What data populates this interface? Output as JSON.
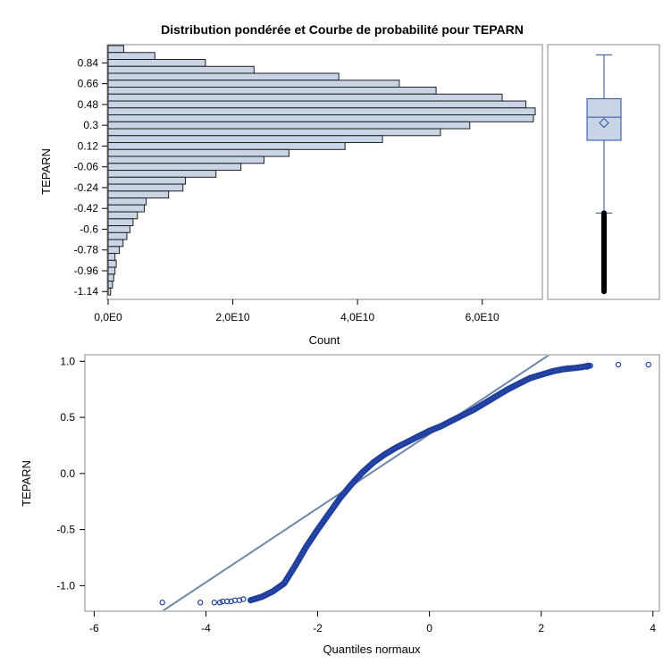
{
  "title": "Distribution pondérée et Courbe de probabilité pour TEPARN",
  "colors": {
    "bar_fill": "#c9d5e6",
    "bar_stroke": "#1f1f1f",
    "box_fill": "#c9d5e6",
    "box_stroke": "#2b4d9e",
    "qq_marker": "#1f3e9e",
    "ref_line": "#6f86a8",
    "frame": "#888888"
  },
  "chart_data": [
    {
      "id": "histogram",
      "type": "bar",
      "orientation": "horizontal",
      "ylabel": "TEPARN",
      "xlabel": "Count",
      "yticks": [
        "0.84",
        "0.66",
        "0.48",
        "0.3",
        "0.12",
        "-0.06",
        "-0.24",
        "-0.42",
        "-0.6",
        "-0.78",
        "-0.96",
        "-1.14"
      ],
      "ytick_values": [
        0.84,
        0.66,
        0.48,
        0.3,
        0.12,
        -0.06,
        -0.24,
        -0.42,
        -0.6,
        -0.78,
        -0.96,
        -1.14
      ],
      "xticks": [
        "0,0E0",
        "2,0E10",
        "4,0E10",
        "6,0E10"
      ],
      "xtick_values": [
        0,
        20000000000,
        40000000000,
        60000000000
      ],
      "xlim": [
        0,
        69500000000
      ],
      "ylim": [
        -1.2,
        0.99
      ],
      "bin_width": 0.06,
      "bin_centers": [
        0.96,
        0.9,
        0.84,
        0.78,
        0.72,
        0.66,
        0.6,
        0.54,
        0.48,
        0.42,
        0.36,
        0.3,
        0.24,
        0.18,
        0.12,
        0.06,
        0.0,
        -0.06,
        -0.12,
        -0.18,
        -0.24,
        -0.3,
        -0.36,
        -0.42,
        -0.48,
        -0.54,
        -0.6,
        -0.66,
        -0.72,
        -0.78,
        -0.84,
        -0.9,
        -0.96,
        -1.02,
        -1.08,
        -1.14
      ],
      "values": [
        2500000000,
        7500000000,
        15600000000,
        23400000000,
        37000000000,
        46700000000,
        52600000000,
        63200000000,
        67000000000,
        68500000000,
        68200000000,
        58000000000,
        53300000000,
        44000000000,
        38000000000,
        29000000000,
        25000000000,
        21300000000,
        17300000000,
        12400000000,
        12000000000,
        9700000000,
        6100000000,
        5800000000,
        4700000000,
        4000000000,
        3500000000,
        3000000000,
        2400000000,
        1800000000,
        1100000000,
        1300000000,
        1100000000,
        900000000,
        700000000,
        400000000
      ]
    },
    {
      "id": "boxplot",
      "type": "box",
      "ylim": [
        -1.2,
        0.99
      ],
      "whisker_high": 0.91,
      "q3": 0.53,
      "median": 0.37,
      "mean": 0.32,
      "q1": 0.17,
      "whisker_low": -0.46,
      "outliers_range": [
        -1.14,
        -0.46
      ]
    },
    {
      "id": "qqplot",
      "type": "scatter",
      "xlabel": "Quantiles normaux",
      "ylabel": "TEPARN",
      "xticks": [
        "-6",
        "-4",
        "-2",
        "0",
        "2",
        "4"
      ],
      "xtick_values": [
        -6,
        -4,
        -2,
        0,
        2,
        4
      ],
      "yticks": [
        "1.0",
        "0.5",
        "0.0",
        "-0.5",
        "-1.0"
      ],
      "ytick_values": [
        1.0,
        0.5,
        0.0,
        -0.5,
        -1.0
      ],
      "xlim": [
        -6.15,
        4.1
      ],
      "ylim": [
        -1.22,
        1.05
      ],
      "ref_line": {
        "intercept": 0.35,
        "slope": 0.33
      },
      "curve": [
        [
          -3.2,
          -1.13
        ],
        [
          -3.0,
          -1.1
        ],
        [
          -2.8,
          -1.05
        ],
        [
          -2.6,
          -0.98
        ],
        [
          -2.4,
          -0.82
        ],
        [
          -2.2,
          -0.65
        ],
        [
          -2.0,
          -0.5
        ],
        [
          -1.8,
          -0.36
        ],
        [
          -1.6,
          -0.22
        ],
        [
          -1.4,
          -0.1
        ],
        [
          -1.2,
          0.01
        ],
        [
          -1.0,
          0.1
        ],
        [
          -0.8,
          0.17
        ],
        [
          -0.6,
          0.23
        ],
        [
          -0.4,
          0.28
        ],
        [
          -0.2,
          0.33
        ],
        [
          0.0,
          0.38
        ],
        [
          0.2,
          0.42
        ],
        [
          0.4,
          0.47
        ],
        [
          0.6,
          0.52
        ],
        [
          0.8,
          0.57
        ],
        [
          1.0,
          0.63
        ],
        [
          1.2,
          0.69
        ],
        [
          1.4,
          0.75
        ],
        [
          1.6,
          0.8
        ],
        [
          1.8,
          0.85
        ],
        [
          2.0,
          0.88
        ],
        [
          2.2,
          0.91
        ],
        [
          2.4,
          0.93
        ],
        [
          2.6,
          0.94
        ],
        [
          2.75,
          0.95
        ],
        [
          2.85,
          0.96
        ]
      ],
      "points": [
        [
          -4.78,
          -1.15
        ],
        [
          -4.1,
          -1.15
        ],
        [
          -3.85,
          -1.15
        ],
        [
          -3.75,
          -1.15
        ],
        [
          -3.7,
          -1.14
        ],
        [
          -3.62,
          -1.14
        ],
        [
          -3.55,
          -1.14
        ],
        [
          -3.48,
          -1.13
        ],
        [
          -3.4,
          -1.13
        ],
        [
          -3.33,
          -1.12
        ],
        [
          2.4,
          0.93
        ],
        [
          2.48,
          0.94
        ],
        [
          2.55,
          0.94
        ],
        [
          2.7,
          0.95
        ],
        [
          2.82,
          0.95
        ],
        [
          2.88,
          0.96
        ],
        [
          3.38,
          0.97
        ],
        [
          3.92,
          0.97
        ]
      ]
    }
  ]
}
